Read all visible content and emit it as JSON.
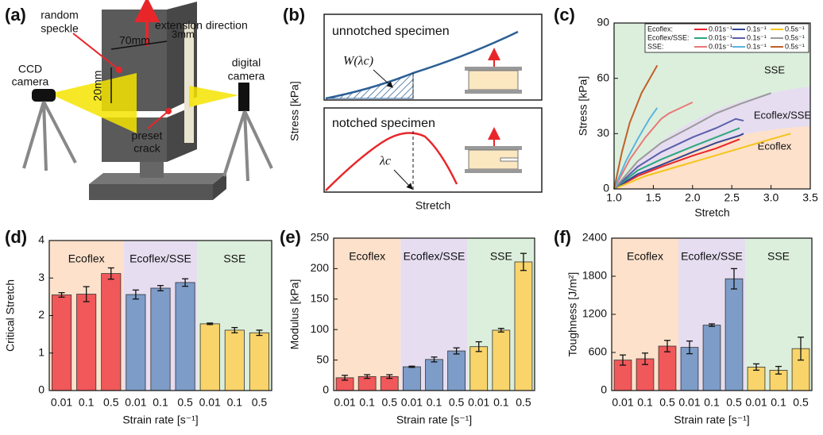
{
  "figure": {
    "a": {
      "label": "(a)",
      "random_speckle": [
        "random",
        "speckle"
      ],
      "extension": "extension direction",
      "width": "70mm",
      "thickness": "3mm",
      "ccd": [
        "CCD",
        "camera"
      ],
      "height": "20mm",
      "digital": [
        "digital",
        "camera"
      ],
      "crack": [
        "preset",
        "crack"
      ]
    },
    "b": {
      "label": "(b)",
      "unnotched": "unnotched specimen",
      "work": "W(λc)",
      "ylabel": "Stress [kPa]",
      "notched": "notched specimen",
      "critical": "λc",
      "xlabel": "Stretch"
    }
  },
  "chart_data": [
    {
      "type": "line",
      "label": "(c)",
      "xlabel": "Stretch",
      "ylabel": "Stress [kPa]",
      "xlim": [
        1,
        3.5
      ],
      "xticks": [
        {
          "value": 1,
          "label": "1.0"
        },
        {
          "value": 1.5,
          "label": "1.5"
        },
        {
          "value": 2,
          "label": "2.0"
        },
        {
          "value": 2.5,
          "label": "2.5"
        },
        {
          "value": 3,
          "label": "3.0"
        },
        {
          "value": 3.5,
          "label": "3.5"
        }
      ],
      "ylim": [
        0,
        90
      ],
      "yticks": [
        0,
        30,
        60,
        90
      ],
      "regions": [
        "SSE",
        "Ecoflex/SSE",
        "Ecoflex"
      ],
      "region_colors": [
        "#dcefdc",
        "#e6ddf1",
        "#fde1cb"
      ],
      "legend": "upper right",
      "legend_groups": [
        "Ecoflex:",
        "Ecoflex/SSE:",
        "SSE:"
      ],
      "series": [
        {
          "name": "0.01s⁻¹",
          "color": "#e8262a",
          "x": [
            1,
            1.3,
            1.6,
            2,
            2.3,
            2.6
          ],
          "values": [
            0,
            7,
            12,
            18,
            22,
            27
          ]
        },
        {
          "name": "0.1s⁻¹",
          "color": "#34479a",
          "x": [
            1,
            1.3,
            1.6,
            2,
            2.3,
            2.6,
            2.65
          ],
          "values": [
            0,
            8,
            13,
            20,
            25,
            29,
            30
          ]
        },
        {
          "name": "0.5s⁻¹",
          "color": "#f5c518",
          "x": [
            1,
            1.4,
            1.8,
            2.2,
            2.6,
            3,
            3.25
          ],
          "values": [
            0,
            7,
            12,
            17,
            22,
            27,
            30
          ]
        },
        {
          "name": "0.01s⁻¹",
          "color": "#2ca87a",
          "x": [
            1,
            1.3,
            1.6,
            2,
            2.3,
            2.6
          ],
          "values": [
            0,
            10,
            16,
            23,
            28,
            33
          ]
        },
        {
          "name": "0.1s⁻¹",
          "color": "#5a5fa8",
          "x": [
            1,
            1.3,
            1.6,
            2,
            2.3,
            2.55,
            2.65
          ],
          "values": [
            0,
            12,
            20,
            28,
            33,
            38,
            37
          ]
        },
        {
          "name": "0.5s⁻¹",
          "color": "#9a9a9a",
          "x": [
            1,
            1.3,
            1.6,
            2,
            2.3,
            2.6,
            3
          ],
          "values": [
            0,
            15,
            25,
            34,
            41,
            46,
            52
          ]
        },
        {
          "name": "0.01s⁻¹",
          "color": "#e87878",
          "x": [
            1,
            1.2,
            1.4,
            1.6,
            1.7,
            1.8,
            1.9,
            2
          ],
          "values": [
            0,
            16,
            28,
            38,
            41,
            43,
            45,
            47
          ]
        },
        {
          "name": "0.1s⁻¹",
          "color": "#5ab4e0",
          "x": [
            1,
            1.15,
            1.3,
            1.45,
            1.55
          ],
          "values": [
            0,
            15,
            27,
            38,
            44
          ]
        },
        {
          "name": "0.5s⁻¹",
          "color": "#c0602a",
          "x": [
            1,
            1.1,
            1.2,
            1.35,
            1.55
          ],
          "values": [
            0,
            20,
            36,
            52,
            67
          ]
        }
      ]
    },
    {
      "type": "bar",
      "label": "(d)",
      "ylabel": "Critical Stretch",
      "xlabel": "Strain rate [s⁻¹]",
      "categories": [
        "0.01",
        "0.1",
        "0.5",
        "0.01",
        "0.1",
        "0.5",
        "0.01",
        "0.1",
        "0.5"
      ],
      "values": [
        2.55,
        2.57,
        3.12,
        2.56,
        2.73,
        2.88,
        1.78,
        1.61,
        1.54
      ],
      "errors": [
        0.06,
        0.2,
        0.15,
        0.12,
        0.07,
        0.1,
        0.02,
        0.07,
        0.07
      ],
      "colors": [
        "#f0585a",
        "#f0585a",
        "#f0585a",
        "#7d9cc8",
        "#7d9cc8",
        "#7d9cc8",
        "#f8d46a",
        "#f8d46a",
        "#f8d46a"
      ],
      "groups": [
        "Ecoflex",
        "Ecoflex/SSE",
        "SSE"
      ],
      "group_colors": [
        "#fde1cb",
        "#e6ddf1",
        "#dcefdc"
      ],
      "ylim": [
        0,
        4
      ],
      "yticks": [
        0,
        1,
        2,
        3,
        4
      ]
    },
    {
      "type": "bar",
      "label": "(e)",
      "ylabel": "Modulus [kPa]",
      "xlabel": "Strain rate [s⁻¹]",
      "categories": [
        "0.01",
        "0.1",
        "0.5",
        "0.01",
        "0.1",
        "0.5",
        "0.01",
        "0.1",
        "0.5"
      ],
      "values": [
        21,
        23,
        23,
        39,
        51,
        65,
        72,
        99,
        211
      ],
      "errors": [
        4,
        3,
        3,
        1,
        4,
        5,
        8,
        3,
        14
      ],
      "colors": [
        "#f0585a",
        "#f0585a",
        "#f0585a",
        "#7d9cc8",
        "#7d9cc8",
        "#7d9cc8",
        "#f8d46a",
        "#f8d46a",
        "#f8d46a"
      ],
      "groups": [
        "Ecoflex",
        "Ecoflex/SSE",
        "SSE"
      ],
      "group_colors": [
        "#fde1cb",
        "#e6ddf1",
        "#dcefdc"
      ],
      "ylim": [
        0,
        250
      ],
      "yticks": [
        0,
        50,
        100,
        150,
        200,
        250
      ]
    },
    {
      "type": "bar",
      "label": "(f)",
      "ylabel": "Toughness [J/m²]",
      "xlabel": "Strain rate [s⁻¹]",
      "categories": [
        "0.01",
        "0.1",
        "0.5",
        "0.01",
        "0.1",
        "0.5",
        "0.01",
        "0.1",
        "0.5"
      ],
      "values": [
        480,
        500,
        700,
        680,
        1030,
        1760,
        370,
        320,
        660
      ],
      "errors": [
        80,
        90,
        90,
        100,
        20,
        160,
        50,
        60,
        180
      ],
      "colors": [
        "#f0585a",
        "#f0585a",
        "#f0585a",
        "#7d9cc8",
        "#7d9cc8",
        "#7d9cc8",
        "#f8d46a",
        "#f8d46a",
        "#f8d46a"
      ],
      "groups": [
        "Ecoflex",
        "Ecoflex/SSE",
        "SSE"
      ],
      "group_colors": [
        "#fde1cb",
        "#e6ddf1",
        "#dcefdc"
      ],
      "ylim": [
        0,
        2400
      ],
      "yticks": [
        0,
        600,
        1200,
        1800,
        2400
      ]
    }
  ]
}
